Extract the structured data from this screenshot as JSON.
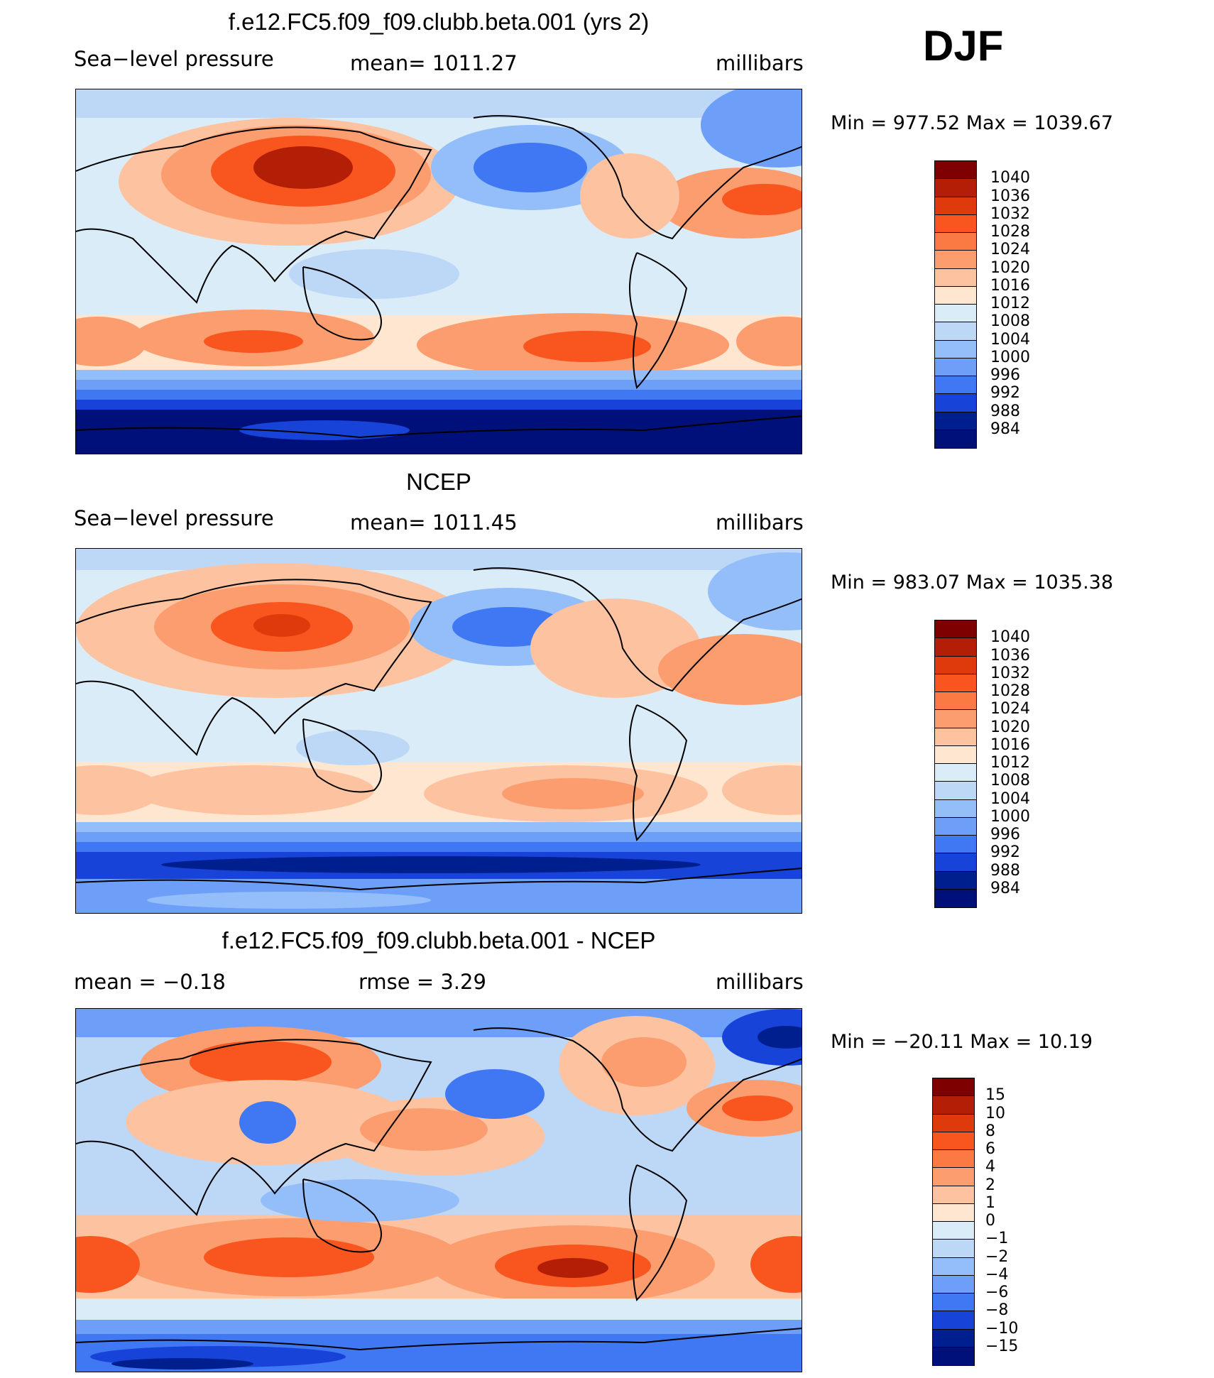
{
  "season": "DJF",
  "panels": [
    {
      "title": "f.e12.FC5.f09_f09.clubb.beta.001 (yrs 2)",
      "left_label": "Sea−level pressure",
      "center_label": "mean=  1011.27",
      "units": "millibars",
      "minmax": "Min  =  977.52  Max  =  1039.67",
      "colorbar": {
        "levels": [
          "1040",
          "1036",
          "1032",
          "1028",
          "1024",
          "1020",
          "1016",
          "1012",
          "1008",
          "1004",
          "1000",
          "996",
          "992",
          "988",
          "984"
        ],
        "colors": [
          "#7f0000",
          "#b21e06",
          "#de3a0c",
          "#f9551e",
          "#fb7a44",
          "#fc9d70",
          "#fdc3a0",
          "#fee6d0",
          "#dbecf9",
          "#bdd7f7",
          "#94befa",
          "#6e9ff8",
          "#3f78f2",
          "#1743d9",
          "#001f8f",
          "#00107a"
        ]
      }
    },
    {
      "title": "NCEP",
      "left_label": "Sea−level pressure",
      "center_label": "mean=  1011.45",
      "units": "millibars",
      "minmax": "Min  =  983.07  Max  =  1035.38",
      "colorbar": {
        "levels": [
          "1040",
          "1036",
          "1032",
          "1028",
          "1024",
          "1020",
          "1016",
          "1012",
          "1008",
          "1004",
          "1000",
          "996",
          "992",
          "988",
          "984"
        ],
        "colors": [
          "#7f0000",
          "#b21e06",
          "#de3a0c",
          "#f9551e",
          "#fb7a44",
          "#fc9d70",
          "#fdc3a0",
          "#fee6d0",
          "#dbecf9",
          "#bdd7f7",
          "#94befa",
          "#6e9ff8",
          "#3f78f2",
          "#1743d9",
          "#001f8f",
          "#00107a"
        ]
      }
    },
    {
      "title": "f.e12.FC5.f09_f09.clubb.beta.001 - NCEP",
      "left_label": "mean  =    −0.18",
      "center_label": "rmse  =     3.29",
      "units": "millibars",
      "minmax": "Min  =  −20.11  Max  =    10.19",
      "colorbar": {
        "levels": [
          "15",
          "10",
          "8",
          "6",
          "4",
          "2",
          "1",
          "0",
          "−1",
          "−2",
          "−4",
          "−6",
          "−8",
          "−10",
          "−15"
        ],
        "colors": [
          "#7f0000",
          "#b21e06",
          "#de3a0c",
          "#f9551e",
          "#fb7a44",
          "#fc9d70",
          "#fdc3a0",
          "#fee6d0",
          "#dbecf9",
          "#bdd7f7",
          "#94befa",
          "#6e9ff8",
          "#3f78f2",
          "#1743d9",
          "#001f8f",
          "#00107a"
        ]
      }
    }
  ]
}
